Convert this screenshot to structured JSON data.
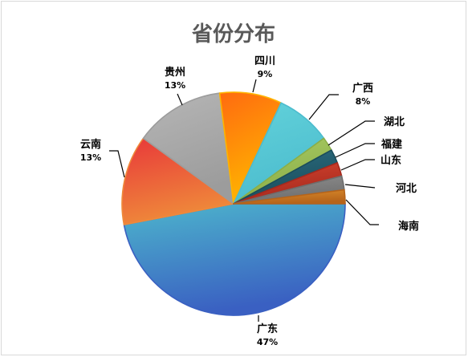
{
  "chart_data": {
    "type": "pie",
    "title": "省份分布",
    "slices": [
      {
        "name": "广东",
        "value": 47,
        "label": "47%",
        "colors": [
          "#4DB6CC",
          "#3A60C2"
        ]
      },
      {
        "name": "云南",
        "value": 13,
        "label": "13%",
        "colors": [
          "#E8383A",
          "#EF8A3A"
        ]
      },
      {
        "name": "贵州",
        "value": 13,
        "label": "13%",
        "colors": [
          "#B6B6B6",
          "#9C9C9C"
        ]
      },
      {
        "name": "四川",
        "value": 9,
        "label": "9%",
        "colors": [
          "#FF6A10",
          "#FFB400"
        ]
      },
      {
        "name": "广西",
        "value": 8,
        "label": "8%",
        "colors": [
          "#62D2DA",
          "#4CBCCE"
        ]
      },
      {
        "name": "湖北",
        "value": 2,
        "colors": [
          "#A8CA63",
          "#8BAE48"
        ]
      },
      {
        "name": "福建",
        "value": 2,
        "colors": [
          "#2B6D80",
          "#1A4C5B"
        ]
      },
      {
        "name": "山东",
        "value": 2,
        "colors": [
          "#D2432F",
          "#A6291D"
        ]
      },
      {
        "name": "河北",
        "value": 2,
        "colors": [
          "#8E8E8E",
          "#6E6E6E"
        ]
      },
      {
        "name": "海南",
        "value": 2,
        "colors": [
          "#DB8C2C",
          "#B6641A"
        ]
      }
    ]
  }
}
